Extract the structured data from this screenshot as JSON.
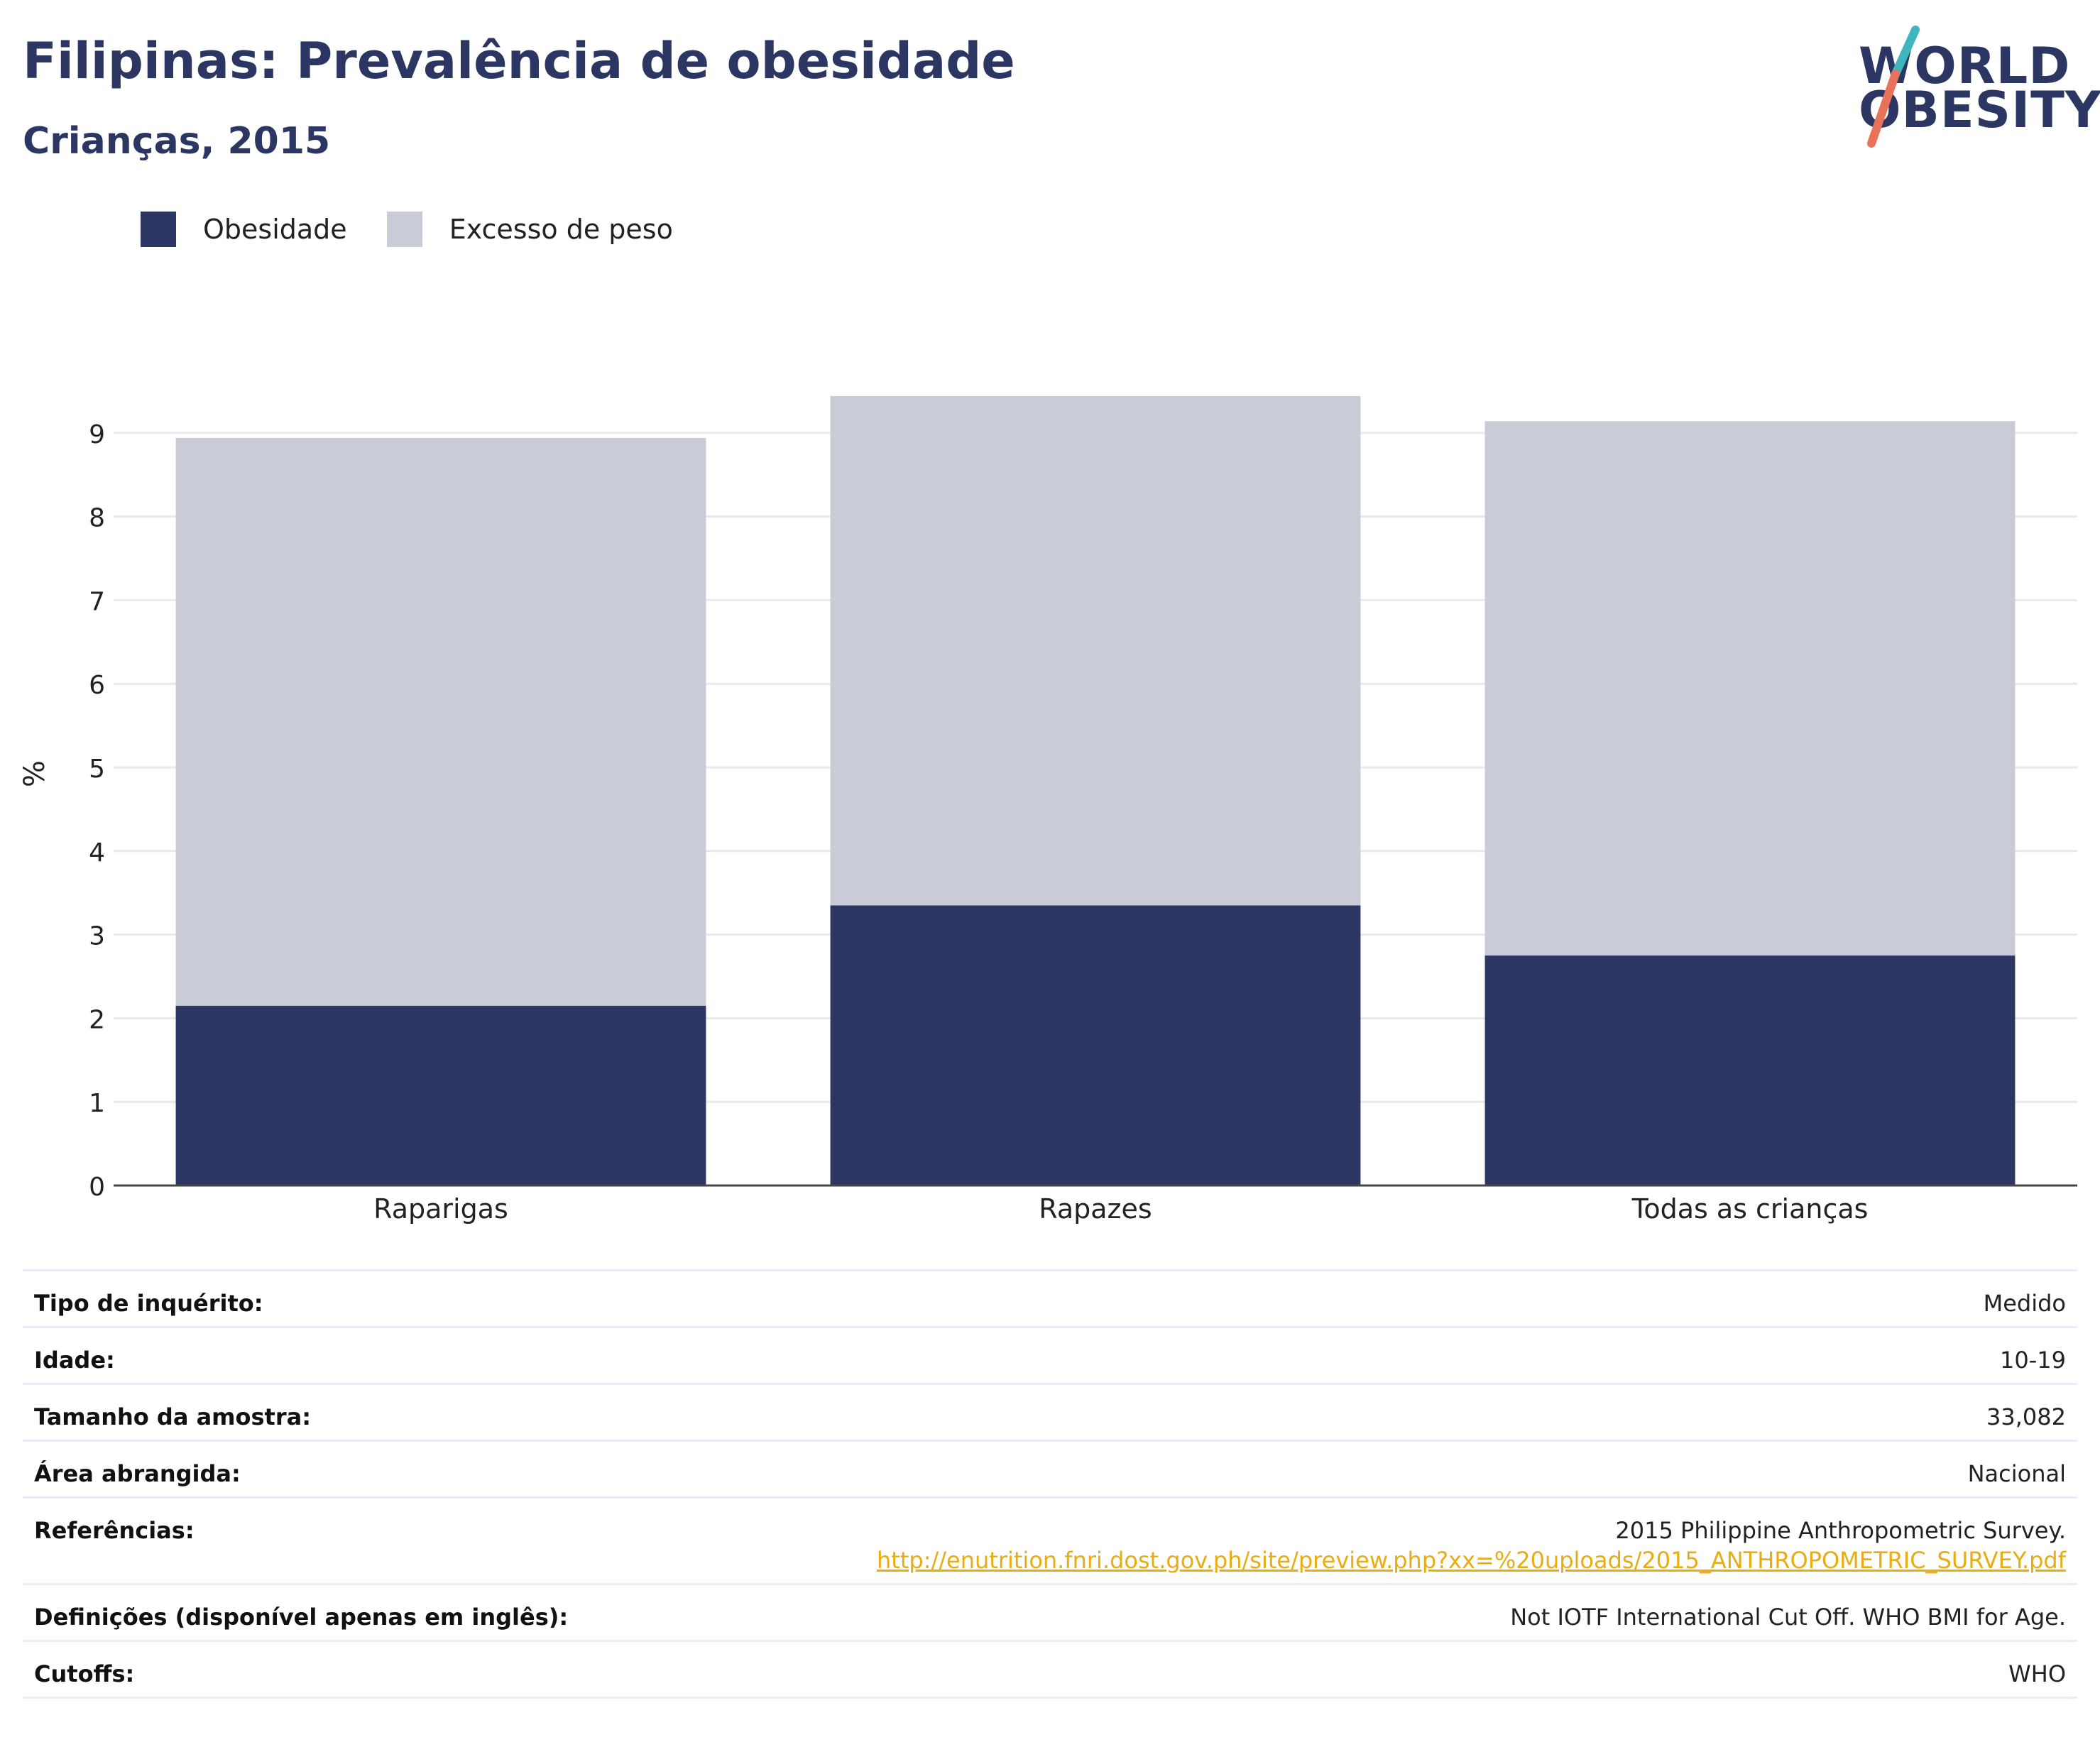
{
  "header": {
    "title": "Filipinas: Prevalência de obesidade",
    "subtitle": "Crianças, 2015"
  },
  "logo": {
    "line1": "WORLD",
    "line2": "OBESITY",
    "slash_colors": [
      "#3fb6bf",
      "#e8735a"
    ]
  },
  "colors": {
    "obesity": "#2b3663",
    "overweight": "#c9cbd6",
    "title": "#2b3663",
    "link": "#e7ad12"
  },
  "chart_data": {
    "type": "bar",
    "stacked": true,
    "categories": [
      "Raparigas",
      "Rapazes",
      "Todas as crianças"
    ],
    "series": [
      {
        "name": "Obesidade",
        "values": [
          2.15,
          3.35,
          2.75
        ],
        "color": "#2b3663"
      },
      {
        "name": "Excesso de peso",
        "values": [
          6.79,
          6.09,
          6.39
        ],
        "color": "#c9cbd6"
      }
    ],
    "ylabel": "%",
    "ylim": [
      0,
      9.5
    ],
    "yticks": [
      0,
      1,
      2,
      3,
      4,
      5,
      6,
      7,
      8,
      9
    ],
    "grid": true,
    "legend_position": "top-left"
  },
  "info": {
    "survey_type": {
      "label": "Tipo de inquérito:",
      "value": "Medido"
    },
    "age": {
      "label": "Idade:",
      "value": "10-19"
    },
    "sample_size": {
      "label": "Tamanho da amostra:",
      "value": "33,082"
    },
    "area": {
      "label": "Área abrangida:",
      "value": "Nacional"
    },
    "references": {
      "label": "Referências:",
      "value": "2015 Philippine Anthropometric Survey.",
      "link": "http://enutrition.fnri.dost.gov.ph/site/preview.php?xx=%20uploads/2015_ANTHROPOMETRIC_SURVEY.pdf"
    },
    "definitions": {
      "label": "Definições (disponível apenas em inglês):",
      "value": "Not IOTF International Cut Off. WHO BMI for Age."
    },
    "cutoffs": {
      "label": "Cutoffs:",
      "value": "WHO"
    }
  }
}
